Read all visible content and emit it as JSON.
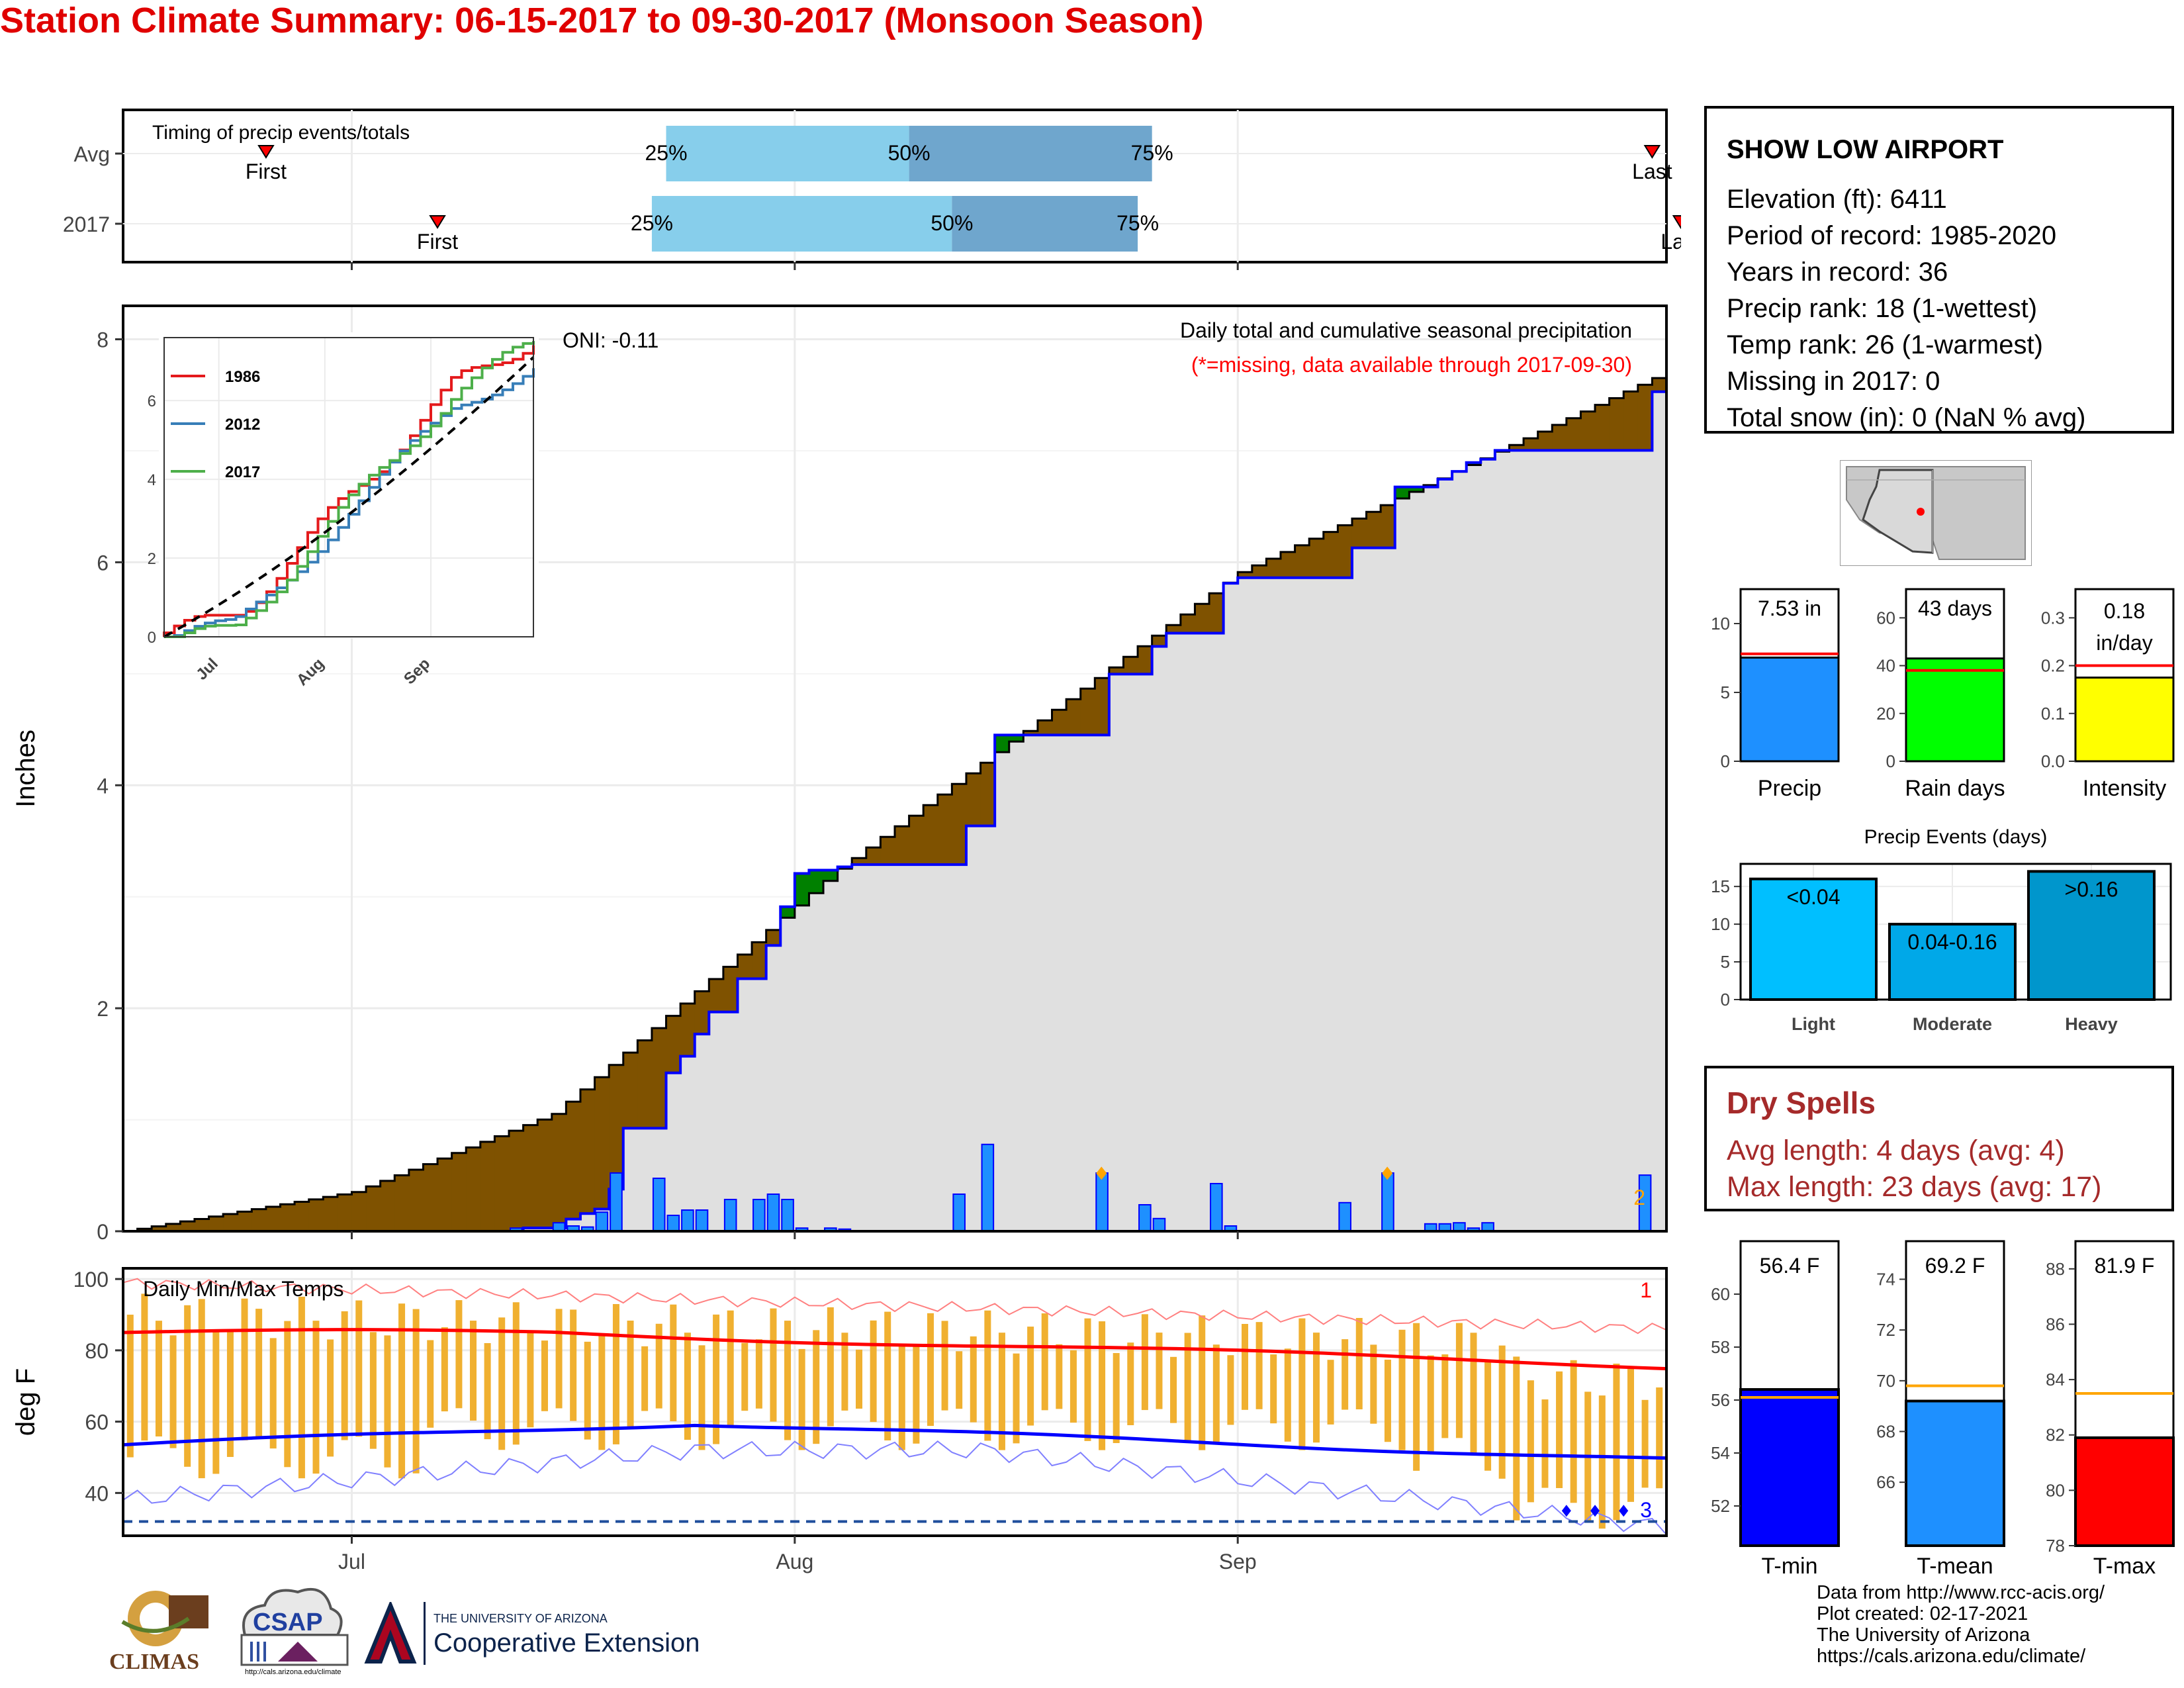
{
  "title": "Station Climate Summary: 06-15-2017 to 09-30-2017 (Monsoon Season)",
  "timing": {
    "label": "Timing of precip events/totals",
    "rows": [
      {
        "name": "Avg",
        "first_day": 10,
        "last_day": 107,
        "q25": 38,
        "q50": 55,
        "q75": 72,
        "q25_label": "25%",
        "q50_label": "50%",
        "q75_label": "75%",
        "first_label": "First",
        "last_label": "Last"
      },
      {
        "name": "2017",
        "first_day": 22,
        "last_day": 109,
        "q25": 37,
        "q50": 58,
        "q75": 71,
        "q25_label": "25%",
        "q50_label": "50%",
        "q75_label": "75%",
        "first_label": "First",
        "last_label": "Last"
      }
    ],
    "colors": {
      "light": "#87ceeb",
      "dark": "#6fa6cd",
      "marker": "#ff0000"
    }
  },
  "station": {
    "name": "SHOW LOW AIRPORT",
    "lines": [
      "Elevation (ft): 6411",
      "Period of record: 1985-2020",
      "Years in record: 36",
      "Precip rank: 18 (1-wettest)",
      "Temp rank: 26 (1-warmest)",
      "Missing in 2017: 0",
      "Total snow (in): 0 (NaN % avg)"
    ]
  },
  "precip_chart": {
    "ylabel": "Inches",
    "yticks": [
      "0",
      "2",
      "4",
      "6",
      "8"
    ],
    "header": "Daily total and cumulative seasonal precipitation",
    "note": "(*=missing, data available through 2017-09-30)",
    "oni": "ONI: -0.11",
    "corner_value": "2",
    "colors": {
      "above": "#008000",
      "below": "#7f5200",
      "avg_fill": "#e0e0e0",
      "bars": "#1e90ff",
      "line": "#0000ff",
      "note": "#ff0000",
      "corner": "#ffa500"
    }
  },
  "inset": {
    "yticks": [
      "0",
      "2",
      "4",
      "6"
    ],
    "xticks": [
      "Jul",
      "Aug",
      "Sep"
    ],
    "legend": [
      {
        "name": "1986",
        "color": "#e41a1c"
      },
      {
        "name": "2012",
        "color": "#377eb8"
      },
      {
        "name": "2017",
        "color": "#4daf4a"
      }
    ]
  },
  "temp_chart": {
    "ylabel": "deg F",
    "title": "Daily Min/Max Temps",
    "yticks": [
      "40",
      "60",
      "80",
      "100"
    ],
    "xticks": [
      "Jul",
      "Aug",
      "Sep"
    ],
    "corner_top": "1",
    "corner_bottom": "3",
    "colors": {
      "bars": "#f0b030",
      "max_avg": "#ff0000",
      "min_avg": "#0000ff",
      "max_rec": "#ff8080",
      "min_rec": "#8080ff"
    }
  },
  "summary_bars": [
    {
      "label": "Precip",
      "value_label": "7.53 in",
      "value": 7.53,
      "avg": 7.8,
      "ymax": 12.5,
      "yticks": [
        "0",
        "5",
        "10"
      ],
      "tick_values": [
        0,
        5,
        10
      ],
      "color": "#1e90ff"
    },
    {
      "label": "Rain days",
      "value_label": "43 days",
      "value": 43,
      "avg": 38,
      "ymax": 72,
      "yticks": [
        "0",
        "20",
        "40",
        "60"
      ],
      "tick_values": [
        0,
        20,
        40,
        60
      ],
      "color": "#00ff00"
    },
    {
      "label": "Intensity",
      "value_label": "0.18 in/day",
      "value": 0.175,
      "avg": 0.2,
      "ymax": 0.36,
      "yticks": [
        "0.0",
        "0.1",
        "0.2",
        "0.3"
      ],
      "tick_values": [
        0,
        0.1,
        0.2,
        0.3
      ],
      "color": "#ffff00"
    }
  ],
  "events": {
    "title": "Precip Events (days)",
    "yticks": [
      "0",
      "5",
      "10",
      "15"
    ],
    "bars": [
      {
        "label": "Light",
        "value_label": "<0.04",
        "value": 16,
        "color": "#00bfff"
      },
      {
        "label": "Moderate",
        "value_label": "0.04-0.16",
        "value": 10,
        "color": "#00a8e8"
      },
      {
        "label": "Heavy",
        "value_label": ">0.16",
        "value": 17,
        "color": "#0096cc"
      }
    ]
  },
  "dry_spells": {
    "title": "Dry Spells",
    "avg_line": "Avg length: 4 days (avg: 4)",
    "max_line": "Max length: 23 days (avg: 17)",
    "color": "#a52a2a"
  },
  "temp_bars": [
    {
      "label": "T-min",
      "value_label": "56.4 F",
      "value": 56.4,
      "avg": 56.1,
      "ymin": 50.5,
      "ymax": 62,
      "yticks": [
        "52",
        "54",
        "56",
        "58",
        "60"
      ],
      "tick_values": [
        52,
        54,
        56,
        58,
        60
      ],
      "color": "#0000ff"
    },
    {
      "label": "T-mean",
      "value_label": "69.2 F",
      "value": 69.2,
      "avg": 69.8,
      "ymin": 63.5,
      "ymax": 75.5,
      "yticks": [
        "66",
        "68",
        "70",
        "72",
        "74"
      ],
      "tick_values": [
        66,
        68,
        70,
        72,
        74
      ],
      "color": "#1e90ff"
    },
    {
      "label": "T-max",
      "value_label": "81.9 F",
      "value": 81.9,
      "avg": 83.5,
      "ymin": 78,
      "ymax": 89,
      "yticks": [
        "78",
        "80",
        "82",
        "84",
        "86",
        "88"
      ],
      "tick_values": [
        78,
        80,
        82,
        84,
        86,
        88
      ],
      "color": "#ff0000"
    }
  ],
  "footer": {
    "lines": [
      "Data from http://www.rcc-acis.org/",
      "Plot created: 02-17-2021",
      "The University of Arizona",
      "https://cals.arizona.edu/climate/"
    ]
  },
  "logos": {
    "climas": "CLIMAS",
    "csap": "CSAP",
    "csap_url": "http://cals.arizona.edu/climate",
    "ua_line1": "THE UNIVERSITY OF ARIZONA",
    "ua_line2": "Cooperative Extension"
  }
}
